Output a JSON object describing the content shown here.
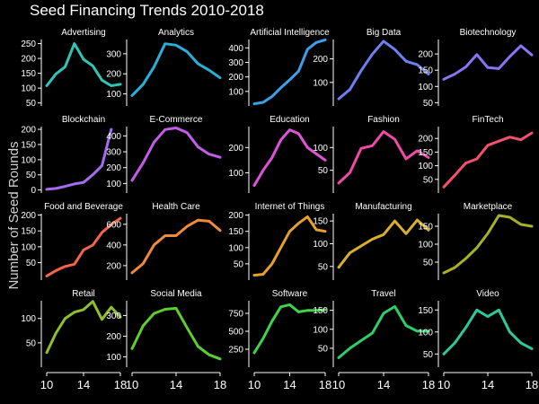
{
  "chart_data": {
    "type": "line",
    "title": "Seed Financing Trends 2010-2018",
    "ylabel": "Number of Seed Rounds",
    "xlabel": "",
    "x": [
      10,
      11,
      12,
      13,
      14,
      15,
      16,
      17,
      18
    ],
    "xticks": [
      10,
      14,
      18
    ],
    "xtick_labels": [
      "10",
      "14",
      "18"
    ],
    "grid": false,
    "panels": [
      {
        "name": "Advertising",
        "color": "#2ec4b6",
        "ylim": [
          40,
          270
        ],
        "yticks": [
          50,
          100,
          150,
          200,
          250
        ],
        "values": [
          108,
          148,
          172,
          250,
          197,
          175,
          127,
          108,
          113
        ]
      },
      {
        "name": "Analytics",
        "color": "#29b0d6",
        "ylim": [
          40,
          380
        ],
        "yticks": [
          100,
          200,
          300
        ],
        "values": [
          92,
          148,
          235,
          350,
          343,
          310,
          250,
          218,
          180
        ]
      },
      {
        "name": "Artificial Intelligence",
        "color": "#3aa0e8",
        "ylim": [
          0,
          470
        ],
        "yticks": [
          100,
          200,
          300,
          400
        ],
        "values": [
          15,
          25,
          65,
          125,
          180,
          240,
          390,
          437,
          455
        ]
      },
      {
        "name": "Big Data",
        "color": "#6f7ff0",
        "ylim": [
          0,
          290
        ],
        "yticks": [
          100,
          200
        ],
        "values": [
          30,
          70,
          150,
          220,
          275,
          240,
          190,
          175,
          135
        ]
      },
      {
        "name": "Biotechnology",
        "color": "#8b74f4",
        "ylim": [
          40,
          250
        ],
        "yticks": [
          50,
          100,
          150,
          200
        ],
        "values": [
          122,
          138,
          160,
          198,
          158,
          155,
          192,
          225,
          197
        ]
      },
      {
        "name": "Blockchain",
        "color": "#a46cf0",
        "ylim": [
          -10,
          215
        ],
        "yticks": [
          0,
          50,
          100,
          150,
          200
        ],
        "values": [
          2,
          5,
          12,
          20,
          25,
          50,
          80,
          200,
          null
        ]
      },
      {
        "name": "E-Commerce",
        "color": "#c35ce8",
        "ylim": [
          40,
          470
        ],
        "yticks": [
          100,
          200,
          300,
          400
        ],
        "values": [
          120,
          230,
          360,
          440,
          450,
          420,
          330,
          285,
          265
        ]
      },
      {
        "name": "Education",
        "color": "#de52d8",
        "ylim": [
          20,
          290
        ],
        "yticks": [
          100,
          200
        ],
        "values": [
          50,
          110,
          160,
          230,
          270,
          255,
          200,
          175,
          150
        ]
      },
      {
        "name": "Fashion",
        "color": "#f04aa6",
        "ylim": [
          0,
          150
        ],
        "yticks": [
          50,
          100
        ],
        "values": [
          22,
          45,
          98,
          104,
          135,
          118,
          75,
          93,
          78
        ]
      },
      {
        "name": "FinTech",
        "color": "#f4506e",
        "ylim": [
          0,
          250
        ],
        "yticks": [
          50,
          100,
          150,
          200
        ],
        "values": [
          22,
          65,
          110,
          125,
          175,
          190,
          205,
          195,
          220
        ]
      },
      {
        "name": "Food and Beverage",
        "color": "#f4644f",
        "ylim": [
          -5,
          210
        ],
        "yticks": [
          50,
          100,
          150,
          200
        ],
        "values": [
          8,
          25,
          38,
          45,
          90,
          105,
          145,
          170,
          190
        ]
      },
      {
        "name": "Health Care",
        "color": "#ef8a3a",
        "ylim": [
          60,
          720
        ],
        "yticks": [
          200,
          400,
          600
        ],
        "values": [
          130,
          220,
          400,
          490,
          490,
          580,
          640,
          630,
          540
        ]
      },
      {
        "name": "Internet of Things",
        "color": "#e8a02c",
        "ylim": [
          0,
          210
        ],
        "yticks": [
          50,
          100,
          150,
          200
        ],
        "values": [
          15,
          18,
          50,
          100,
          150,
          175,
          195,
          155,
          150
        ]
      },
      {
        "name": "Manufacturing",
        "color": "#d8b02a",
        "ylim": [
          20,
          170
        ],
        "yticks": [
          50,
          100,
          150
        ],
        "values": [
          48,
          80,
          95,
          110,
          120,
          150,
          122,
          152,
          130
        ]
      },
      {
        "name": "Marketplace",
        "color": "#a8b02a",
        "ylim": [
          0,
          190
        ],
        "yticks": [
          50,
          100,
          150
        ],
        "values": [
          20,
          35,
          60,
          90,
          130,
          180,
          175,
          155,
          150
        ]
      },
      {
        "name": "Retail",
        "color": "#8fc02c",
        "ylim": [
          0,
          140
        ],
        "yticks": [
          50,
          100
        ],
        "values": [
          30,
          70,
          100,
          113,
          118,
          135,
          98,
          123,
          103
        ]
      },
      {
        "name": "Social Media",
        "color": "#5ccf2e",
        "ylim": [
          50,
          380
        ],
        "yticks": [
          100,
          200,
          300
        ],
        "values": [
          140,
          250,
          310,
          330,
          335,
          240,
          150,
          110,
          90
        ]
      },
      {
        "name": "Software",
        "color": "#3fd34a",
        "ylim": [
          0,
          950
        ],
        "yticks": [
          250,
          500,
          750
        ],
        "values": [
          200,
          400,
          640,
          840,
          870,
          770,
          790,
          790,
          800
        ]
      },
      {
        "name": "Travel",
        "color": "#2fcd6a",
        "ylim": [
          0,
          180
        ],
        "yticks": [
          50,
          100,
          150
        ],
        "values": [
          25,
          50,
          70,
          90,
          142,
          160,
          110,
          95,
          95
        ]
      },
      {
        "name": "Video",
        "color": "#2ec89a",
        "ylim": [
          20,
          175
        ],
        "yticks": [
          50,
          100,
          150
        ],
        "values": [
          50,
          75,
          110,
          150,
          135,
          150,
          100,
          75,
          62
        ]
      }
    ]
  }
}
